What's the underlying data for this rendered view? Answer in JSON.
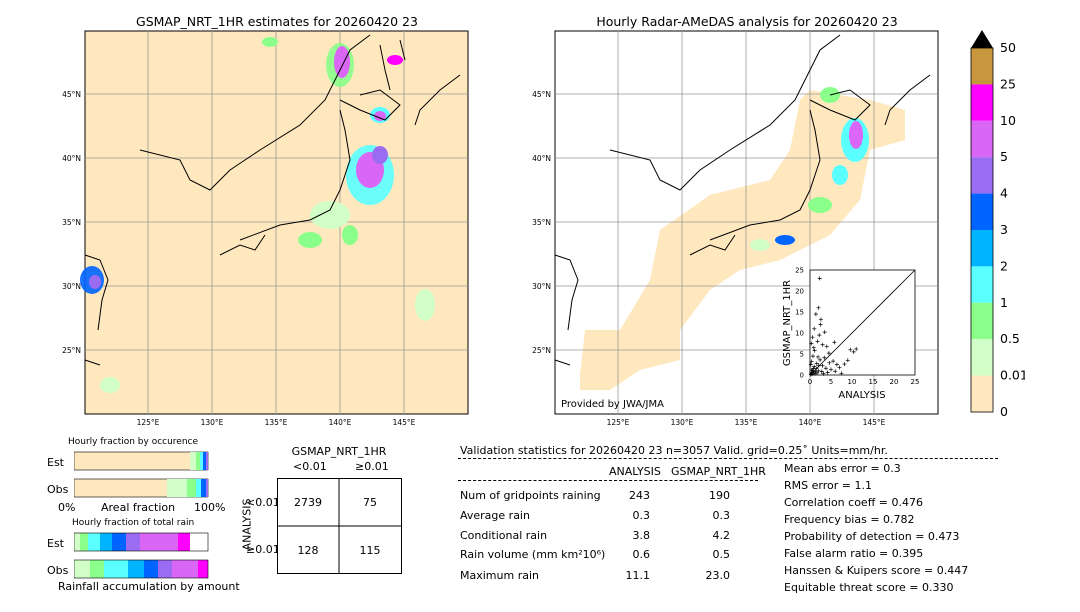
{
  "left_map": {
    "title": "GSMAP_NRT_1HR estimates for 20260420 23",
    "lat_labels": [
      "45°N",
      "40°N",
      "35°N",
      "30°N",
      "25°N"
    ],
    "lon_labels": [
      "125°E",
      "130°E",
      "135°E",
      "140°E",
      "145°E"
    ]
  },
  "right_map": {
    "title": "Hourly Radar-AMeDAS analysis for 20260420 23",
    "lat_labels": [
      "45°N",
      "40°N",
      "35°N",
      "30°N",
      "25°N"
    ],
    "lon_labels": [
      "125°E",
      "130°E",
      "135°E",
      "140°E",
      "145°E"
    ],
    "credit": "Provided by JWA/JMA"
  },
  "colorbar": {
    "levels": [
      "50",
      "25",
      "10",
      "5",
      "4",
      "3",
      "2",
      "1",
      "0.5",
      "0.01",
      "0"
    ],
    "colors": [
      "#c8963c",
      "#ff00ff",
      "#d966f5",
      "#9b6bf2",
      "#0064ff",
      "#00b4ff",
      "#5affff",
      "#8aff8a",
      "#d2ffc8",
      "#ffe8be"
    ],
    "over_color": "#000000"
  },
  "occurrence": {
    "title": "Hourly fraction by occurence",
    "row_est": "Est",
    "row_obs": "Obs",
    "axis_left": "0%",
    "axis_mid": "Areal fraction",
    "axis_right": "100%"
  },
  "total_rain": {
    "title": "Hourly fraction of total rain",
    "row_est": "Est",
    "row_obs": "Obs",
    "footer": "Rainfall accumulation by amount"
  },
  "contingency": {
    "header": "GSMAP_NRT_1HR",
    "col_lt": "<0.01",
    "col_ge": "≥0.01",
    "axis": "ANALYSIS",
    "row_lt": "<0.01",
    "row_ge": "≥0.01",
    "cells": [
      "2739",
      "75",
      "128",
      "115"
    ]
  },
  "validation": {
    "title": "Validation statistics for 20260420 23  n=3057 Valid. grid=0.25˚ Units=mm/hr.",
    "col_analysis": "ANALYSIS",
    "col_gsmap": "GSMAP_NRT_1HR",
    "rows": [
      {
        "label": "Num of gridpoints raining",
        "analysis": "243",
        "gsmap": "190"
      },
      {
        "label": "Average rain",
        "analysis": "0.3",
        "gsmap": "0.3"
      },
      {
        "label": "Conditional rain",
        "analysis": "3.8",
        "gsmap": "4.2"
      },
      {
        "label": "Rain volume (mm km²10⁶)",
        "analysis": "0.6",
        "gsmap": "0.5"
      },
      {
        "label": "Maximum rain",
        "analysis": "11.1",
        "gsmap": "23.0"
      }
    ],
    "scores": [
      "Mean abs error =    0.3",
      "RMS error =    1.1",
      "Correlation coeff =  0.476",
      "Frequency bias =  0.782",
      "Probability of detection =  0.473",
      "False alarm ratio =  0.395",
      "Hanssen & Kuipers score =  0.447",
      "Equitable threat score =  0.330"
    ]
  },
  "chart_data": {
    "type": "scatter",
    "xlabel": "ANALYSIS",
    "ylabel": "GSMAP_NRT_1HR",
    "xlim": [
      0,
      25
    ],
    "ylim": [
      0,
      25
    ],
    "ticks": [
      "0",
      "5",
      "10",
      "15",
      "20",
      "25"
    ],
    "points": [
      [
        0.2,
        0.1
      ],
      [
        0.3,
        0.4
      ],
      [
        0.5,
        0.2
      ],
      [
        0.6,
        1.1
      ],
      [
        0.8,
        0.5
      ],
      [
        1.0,
        2.0
      ],
      [
        1.2,
        0.3
      ],
      [
        1.5,
        1.5
      ],
      [
        0.4,
        3.2
      ],
      [
        0.7,
        4.5
      ],
      [
        1.1,
        5.8
      ],
      [
        0.9,
        6.5
      ],
      [
        1.6,
        2.7
      ],
      [
        2.0,
        1.0
      ],
      [
        2.4,
        3.6
      ],
      [
        2.8,
        0.8
      ],
      [
        3.0,
        2.2
      ],
      [
        3.4,
        4.1
      ],
      [
        3.8,
        1.6
      ],
      [
        4.2,
        0.6
      ],
      [
        4.6,
        2.9
      ],
      [
        5.0,
        1.3
      ],
      [
        5.5,
        3.3
      ],
      [
        6.0,
        0.9
      ],
      [
        6.4,
        2.5
      ],
      [
        7.0,
        1.8
      ],
      [
        7.5,
        0.4
      ],
      [
        8.2,
        2.6
      ],
      [
        9.0,
        3.5
      ],
      [
        9.6,
        6.0
      ],
      [
        10.4,
        5.5
      ],
      [
        11.0,
        6.2
      ],
      [
        1.8,
        8.0
      ],
      [
        2.2,
        9.5
      ],
      [
        2.5,
        12.0
      ],
      [
        1.4,
        14.5
      ],
      [
        2.0,
        16.0
      ],
      [
        2.6,
        13.2
      ],
      [
        3.0,
        7.2
      ],
      [
        3.5,
        10.2
      ],
      [
        4.0,
        6.8
      ],
      [
        1.0,
        11.0
      ],
      [
        0.6,
        9.0
      ],
      [
        2.3,
        23.0
      ],
      [
        0.3,
        7.5
      ],
      [
        4.5,
        5.2
      ],
      [
        5.8,
        7.8
      ],
      [
        1.3,
        0.8
      ],
      [
        0.5,
        0.6
      ],
      [
        0.8,
        1.6
      ],
      [
        1.7,
        0.5
      ],
      [
        2.1,
        2.3
      ],
      [
        0.2,
        2.5
      ],
      [
        3.2,
        0.3
      ],
      [
        0.4,
        1.2
      ],
      [
        1.9,
        4.3
      ]
    ]
  }
}
